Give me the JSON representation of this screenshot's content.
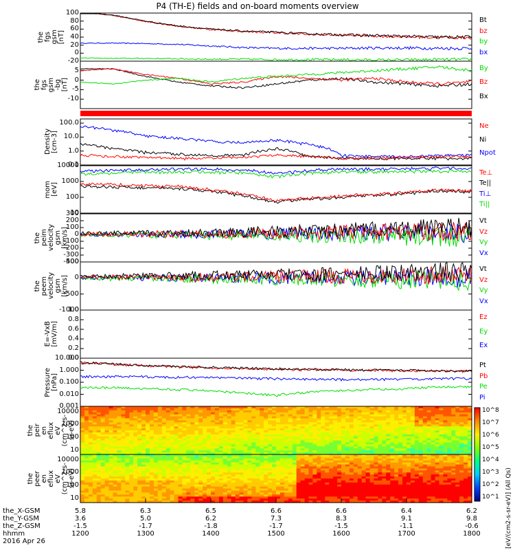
{
  "title": "P4 (TH-E) fields and on-board moments overview",
  "colors": {
    "black": "#000000",
    "red": "#ff0000",
    "green": "#00dd00",
    "blue": "#0000ff"
  },
  "chart_data": [
    {
      "type": "line",
      "ylabel": [
        "the",
        "fgs",
        "gsm",
        "[nT]"
      ],
      "ylim": [
        -20,
        100
      ],
      "ticks": [
        100,
        80,
        60,
        40,
        20,
        0,
        -20
      ],
      "series": [
        {
          "name": "Bt",
          "color": "black",
          "values": [
            103,
            95,
            80,
            68,
            60,
            55,
            52,
            48,
            46,
            44,
            42,
            40,
            40
          ]
        },
        {
          "name": "bz",
          "color": "red",
          "values": [
            102,
            94,
            79,
            67,
            59,
            54,
            51,
            47,
            45,
            43,
            41,
            39,
            39
          ]
        },
        {
          "name": "by",
          "color": "green",
          "values": [
            -12,
            -13,
            -13,
            -14,
            -15,
            -15,
            -16,
            -16,
            -16,
            -17,
            -17,
            -16,
            -16
          ]
        },
        {
          "name": "bx",
          "color": "blue",
          "values": [
            25,
            25,
            24,
            22,
            18,
            14,
            12,
            12,
            12,
            13,
            13,
            12,
            12
          ]
        }
      ]
    },
    {
      "type": "line",
      "ylabel": [
        "the",
        "fgs",
        "gsm",
        "-bg",
        "[nT]"
      ],
      "ylim": [
        -15,
        10
      ],
      "ticks": [
        5,
        0,
        -5,
        -10
      ],
      "series": [
        {
          "name": "By",
          "color": "green",
          "values": [
            -1,
            -2,
            0,
            1,
            -1,
            1,
            2,
            3,
            4,
            5,
            6,
            7,
            5
          ]
        },
        {
          "name": "Bz",
          "color": "red",
          "values": [
            5,
            6,
            3,
            1,
            -2,
            -1,
            2,
            1,
            0,
            1,
            -1,
            -2,
            -1
          ]
        },
        {
          "name": "Bx",
          "color": "black",
          "values": [
            6,
            6,
            2,
            -1,
            -3,
            -4,
            -2,
            0,
            1,
            -1,
            -2,
            -3,
            -2
          ]
        }
      ]
    },
    {
      "type": "line",
      "ylabel": [
        "Density",
        "[cm-3]"
      ],
      "log": true,
      "ylim": [
        0.1,
        200
      ],
      "ticks": [
        "100.0",
        "10.0",
        "1.0",
        "0.1"
      ],
      "series": [
        {
          "name": "Ne",
          "color": "red",
          "values": [
            0.5,
            0.4,
            0.35,
            0.3,
            0.3,
            0.35,
            0.5,
            0.4,
            0.3,
            0.3,
            0.35,
            0.4,
            0.4
          ]
        },
        {
          "name": "Ni",
          "color": "black",
          "values": [
            3,
            1.5,
            0.8,
            0.6,
            0.5,
            0.5,
            1.5,
            0.4,
            0.3,
            0.3,
            0.3,
            0.3,
            0.3
          ]
        },
        {
          "name": "Npot",
          "color": "blue",
          "values": [
            60,
            30,
            12,
            8,
            5,
            4,
            6,
            3,
            0.5,
            0.4,
            0.4,
            0.5,
            0.5
          ]
        }
      ]
    },
    {
      "type": "line",
      "ylabel": [
        "mom",
        "[eV]"
      ],
      "log": true,
      "ylim": [
        10,
        10000
      ],
      "ticks": [
        "10000",
        "1000",
        "100",
        "10"
      ],
      "series": [
        {
          "name": "Te⊥",
          "color": "red",
          "values": [
            700,
            650,
            550,
            500,
            300,
            150,
            60,
            90,
            120,
            150,
            200,
            300,
            250
          ]
        },
        {
          "name": "Te||",
          "color": "black",
          "values": [
            500,
            450,
            400,
            350,
            250,
            120,
            50,
            80,
            100,
            130,
            180,
            250,
            220
          ]
        },
        {
          "name": "Ti⊥",
          "color": "blue",
          "values": [
            4500,
            5000,
            5500,
            6000,
            6000,
            5500,
            3000,
            5000,
            6000,
            6000,
            6500,
            7000,
            7000
          ]
        },
        {
          "name": "Ti||",
          "color": "green",
          "values": [
            3000,
            3500,
            4000,
            4000,
            4000,
            3500,
            2000,
            3500,
            4000,
            4000,
            4500,
            4500,
            4500
          ]
        }
      ]
    },
    {
      "type": "line",
      "ylabel": [
        "the",
        "peim",
        "velocity",
        "gsm",
        "[km/s]"
      ],
      "ylim": [
        -400,
        300
      ],
      "ticks": [
        300,
        200,
        100,
        0,
        -100,
        -200,
        -300,
        -400
      ],
      "series": [
        {
          "name": "Vt",
          "color": "black",
          "values": [
            15,
            15,
            15,
            20,
            30,
            40,
            40,
            50,
            60,
            80,
            90,
            100,
            100
          ]
        },
        {
          "name": "Vz",
          "color": "red",
          "values": [
            5,
            5,
            5,
            10,
            10,
            15,
            15,
            20,
            30,
            40,
            40,
            50,
            50
          ]
        },
        {
          "name": "Vy",
          "color": "green",
          "values": [
            -5,
            -5,
            -5,
            -10,
            -10,
            -15,
            -15,
            -20,
            -20,
            -30,
            -40,
            -40,
            -40
          ]
        },
        {
          "name": "Vx",
          "color": "blue",
          "values": [
            0,
            0,
            0,
            0,
            5,
            5,
            10,
            10,
            15,
            20,
            20,
            25,
            25
          ]
        }
      ]
    },
    {
      "type": "line",
      "ylabel": [
        "the",
        "peem",
        "velocity",
        "gsm",
        "[km/s]"
      ],
      "ylim": [
        -1000,
        500
      ],
      "ticks": [
        500,
        0,
        -500,
        -1000
      ],
      "series": [
        {
          "name": "Vt",
          "color": "black",
          "values": [
            60,
            60,
            60,
            70,
            80,
            90,
            100,
            110,
            120,
            150,
            170,
            200,
            200
          ]
        },
        {
          "name": "Vz",
          "color": "red",
          "values": [
            30,
            30,
            30,
            35,
            40,
            45,
            50,
            55,
            60,
            70,
            80,
            90,
            90
          ]
        },
        {
          "name": "Vy",
          "color": "green",
          "values": [
            -20,
            -20,
            -20,
            -25,
            -30,
            -35,
            -40,
            -45,
            -50,
            -60,
            -70,
            -80,
            -80
          ]
        },
        {
          "name": "Vx",
          "color": "blue",
          "values": [
            0,
            0,
            0,
            0,
            0,
            0,
            0,
            0,
            0,
            0,
            0,
            0,
            0
          ]
        }
      ]
    },
    {
      "type": "line",
      "ylabel": [
        "E=-VxB",
        "[mV/m]"
      ],
      "ylim": [
        0,
        1
      ],
      "ticks": [
        "1.0",
        "0.8",
        "0.6",
        "0.4",
        "0.2",
        "0.0"
      ],
      "series": [
        {
          "name": "Ez",
          "color": "red",
          "values": []
        },
        {
          "name": "Ey",
          "color": "green",
          "values": []
        },
        {
          "name": "Ex",
          "color": "blue",
          "values": []
        }
      ]
    },
    {
      "type": "line",
      "ylabel": [
        "Pressure",
        "[nPa]"
      ],
      "log": true,
      "ylim": [
        0.001,
        10
      ],
      "ticks": [
        "10.000",
        "1.000",
        "0.100",
        "0.010",
        "0.001"
      ],
      "series": [
        {
          "name": "Pt",
          "color": "black",
          "values": [
            4.2,
            3.5,
            2.5,
            2,
            1.7,
            1.5,
            1.3,
            1.2,
            1.1,
            1.05,
            1,
            0.9,
            0.9
          ]
        },
        {
          "name": "Pb",
          "color": "red",
          "values": [
            4,
            3.3,
            2.4,
            1.9,
            1.6,
            1.4,
            1.2,
            1.1,
            1,
            1,
            0.95,
            0.85,
            0.85
          ]
        },
        {
          "name": "Pe",
          "color": "green",
          "values": [
            0.04,
            0.035,
            0.03,
            0.025,
            0.02,
            0.012,
            0.008,
            0.015,
            0.02,
            0.025,
            0.03,
            0.04,
            0.04
          ]
        },
        {
          "name": "Pi",
          "color": "blue",
          "values": [
            0.3,
            0.3,
            0.28,
            0.26,
            0.25,
            0.22,
            0.2,
            0.18,
            0.17,
            0.17,
            0.18,
            0.2,
            0.2
          ]
        }
      ]
    },
    {
      "type": "heatmap",
      "ylabel": [
        "the",
        "peir",
        "en",
        "eflux",
        "eV",
        "(cm^2-s-",
        "sr-eV)"
      ],
      "log": true,
      "ylim": [
        5,
        25000
      ],
      "ticks": [
        "10000",
        "1000",
        "100",
        "10"
      ]
    },
    {
      "type": "heatmap",
      "ylabel": [
        "the",
        "peer",
        "en",
        "eflux",
        "eV",
        "(cm^2-s-",
        "sr-eV)"
      ],
      "log": true,
      "ylim": [
        5,
        25000
      ],
      "ticks": [
        "10000",
        "1000",
        "100",
        "10"
      ]
    }
  ],
  "colorbar": {
    "label": "[eV/(cm2-s-sr-eV)] (All Qs)",
    "ticks": [
      "10^8",
      "10^7",
      "10^6",
      "10^5",
      "10^4",
      "10^3",
      "10^2",
      "10^1"
    ]
  },
  "xaxis": {
    "ticks": [
      "1200",
      "1300",
      "1400",
      "1500",
      "1600",
      "1700",
      "1800"
    ],
    "rows": [
      {
        "label": "the_X-GSM",
        "values": [
          "5.8",
          "6.3",
          "6.5",
          "6.6",
          "6.6",
          "6.4",
          "6.2"
        ]
      },
      {
        "label": "the_Y-GSM",
        "values": [
          "3.6",
          "5.0",
          "6.2",
          "7.3",
          "8.3",
          "9.1",
          "9.8"
        ]
      },
      {
        "label": "the_Z-GSM",
        "values": [
          "-1.5",
          "-1.7",
          "-1.8",
          "-1.7",
          "-1.5",
          "-1.1",
          "-0.6"
        ]
      },
      {
        "label": "hhmm",
        "values": [
          "1200",
          "1300",
          "1400",
          "1500",
          "1600",
          "1700",
          "1800"
        ]
      }
    ],
    "date": "2016 Apr 26"
  }
}
